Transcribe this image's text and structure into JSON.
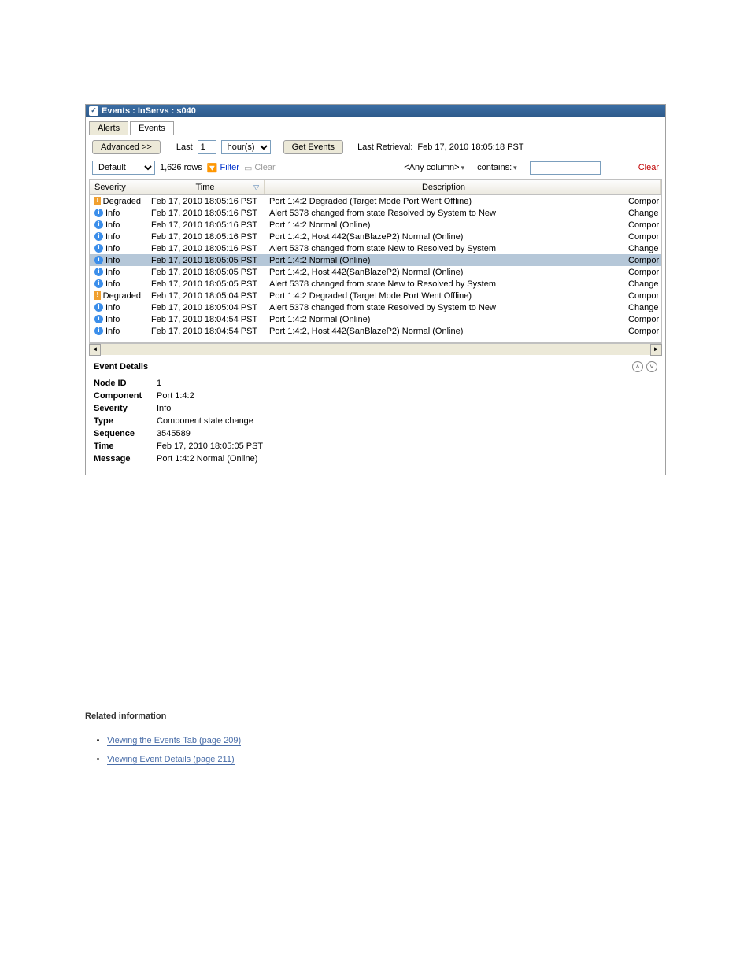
{
  "window": {
    "title": "Events : InServs : s040"
  },
  "tabs": [
    {
      "label": "Alerts",
      "active": false
    },
    {
      "label": "Events",
      "active": true
    }
  ],
  "toolbar": {
    "advanced_label": "Advanced >>",
    "last_label": "Last",
    "last_value": "1",
    "unit_options": [
      "hour(s)"
    ],
    "unit_selected": "hour(s)",
    "get_events_label": "Get Events",
    "last_retrieval_label": "Last Retrieval:",
    "last_retrieval_value": "Feb 17, 2010 18:05:18 PST"
  },
  "filterbar": {
    "view_options": [
      "Default"
    ],
    "view_selected": "Default",
    "row_count_label": "1,626 rows",
    "filter_label": "Filter",
    "clear_filter_label": "Clear",
    "any_column_label": "<Any column>",
    "contains_label": "contains:",
    "clear_label": "Clear"
  },
  "columns": {
    "severity": "Severity",
    "time": "Time",
    "description": "Description",
    "type_truncated": ""
  },
  "rows": [
    {
      "sev": "Degraded",
      "sev_icon": "degraded",
      "time": "Feb 17, 2010 18:05:16 PST",
      "desc": "Port 1:4:2 Degraded (Target Mode Port Went Offline)",
      "type": "Compor"
    },
    {
      "sev": "Info",
      "sev_icon": "info",
      "time": "Feb 17, 2010 18:05:16 PST",
      "desc": "Alert 5378 changed from state Resolved by System to New",
      "type": "Change"
    },
    {
      "sev": "Info",
      "sev_icon": "info",
      "time": "Feb 17, 2010 18:05:16 PST",
      "desc": "Port 1:4:2 Normal (Online)",
      "type": "Compor"
    },
    {
      "sev": "Info",
      "sev_icon": "info",
      "time": "Feb 17, 2010 18:05:16 PST",
      "desc": "Port 1:4:2, Host 442(SanBlazeP2) Normal (Online)",
      "type": "Compor"
    },
    {
      "sev": "Info",
      "sev_icon": "info",
      "time": "Feb 17, 2010 18:05:16 PST",
      "desc": "Alert 5378 changed from state New to Resolved by System",
      "type": "Change"
    },
    {
      "sev": "Info",
      "sev_icon": "info",
      "time": "Feb 17, 2010 18:05:05 PST",
      "desc": "Port 1:4:2 Normal (Online)",
      "type": "Compor",
      "selected": true
    },
    {
      "sev": "Info",
      "sev_icon": "info",
      "time": "Feb 17, 2010 18:05:05 PST",
      "desc": "Port 1:4:2, Host 442(SanBlazeP2) Normal (Online)",
      "type": "Compor"
    },
    {
      "sev": "Info",
      "sev_icon": "info",
      "time": "Feb 17, 2010 18:05:05 PST",
      "desc": "Alert 5378 changed from state New to Resolved by System",
      "type": "Change"
    },
    {
      "sev": "Degraded",
      "sev_icon": "degraded",
      "time": "Feb 17, 2010 18:05:04 PST",
      "desc": "Port 1:4:2 Degraded (Target Mode Port Went Offline)",
      "type": "Compor"
    },
    {
      "sev": "Info",
      "sev_icon": "info",
      "time": "Feb 17, 2010 18:05:04 PST",
      "desc": "Alert 5378 changed from state Resolved by System to New",
      "type": "Change"
    },
    {
      "sev": "Info",
      "sev_icon": "info",
      "time": "Feb 17, 2010 18:04:54 PST",
      "desc": "Port 1:4:2 Normal (Online)",
      "type": "Compor"
    },
    {
      "sev": "Info",
      "sev_icon": "info",
      "time": "Feb 17, 2010 18:04:54 PST",
      "desc": "Port 1:4:2, Host 442(SanBlazeP2) Normal (Online)",
      "type": "Compor"
    }
  ],
  "details": {
    "title": "Event Details",
    "items": [
      {
        "key": "Node ID",
        "val": "1"
      },
      {
        "key": "Component",
        "val": "Port 1:4:2"
      },
      {
        "key": "Severity",
        "val": "Info"
      },
      {
        "key": "Type",
        "val": "Component state change"
      },
      {
        "key": "Sequence",
        "val": "3545589"
      },
      {
        "key": "Time",
        "val": "Feb 17, 2010 18:05:05 PST"
      },
      {
        "key": "Message",
        "val": "Port 1:4:2 Normal (Online)"
      }
    ]
  },
  "appendix": {
    "related_label": "Related information",
    "links": [
      "Viewing the Events Tab (page 209)",
      "Viewing Event Details (page 211)"
    ]
  }
}
